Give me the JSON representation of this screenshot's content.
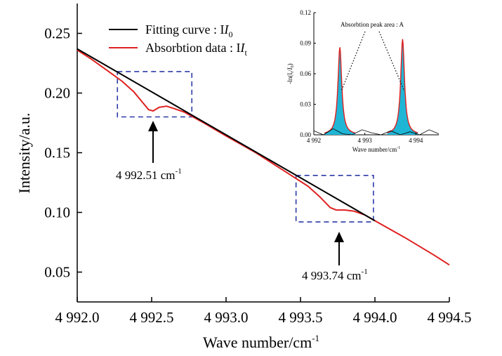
{
  "chart_data": [
    {
      "type": "line",
      "xlabel": "Wave number/cm",
      "xlabel_sup": "-1",
      "ylabel": "Intensity/a.u.",
      "xlim": [
        4992.0,
        4994.5
      ],
      "ylim": [
        0.025,
        0.275
      ],
      "xticks": [
        4992.0,
        4992.5,
        4993.0,
        4993.5,
        4994.0,
        4994.5
      ],
      "xtick_labels": [
        "4 992.0",
        "4 992.5",
        "4 993.0",
        "4 993.5",
        "4 994.0",
        "4 994.5"
      ],
      "yticks": [
        0.05,
        0.1,
        0.15,
        0.2,
        0.25
      ],
      "ytick_labels": [
        "0.05",
        "0.10",
        "0.15",
        "0.20",
        "0.25"
      ],
      "series": [
        {
          "name": "Fitting curve : I",
          "name_sub": "0",
          "color": "#000000",
          "x": [
            4992.0,
            4994.0
          ],
          "y": [
            0.237,
            0.093
          ]
        },
        {
          "name": "Absorbtion data : I",
          "name_sub": "t",
          "color": "#e02020",
          "x": [
            4992.0,
            4992.1,
            4992.2,
            4992.3,
            4992.38,
            4992.44,
            4992.48,
            4992.51,
            4992.55,
            4992.6,
            4992.65,
            4992.72,
            4992.85,
            4993.0,
            4993.2,
            4993.4,
            4993.55,
            4993.63,
            4993.7,
            4993.74,
            4993.8,
            4993.86,
            4993.93,
            4994.0,
            4994.2,
            4994.4,
            4994.5
          ],
          "y": [
            0.236,
            0.228,
            0.219,
            0.21,
            0.201,
            0.192,
            0.186,
            0.185,
            0.188,
            0.189,
            0.187,
            0.184,
            0.175,
            0.164,
            0.15,
            0.134,
            0.122,
            0.113,
            0.104,
            0.102,
            0.102,
            0.101,
            0.098,
            0.093,
            0.079,
            0.064,
            0.056
          ]
        }
      ],
      "annotations": [
        {
          "text": "4 992.51 cm",
          "sup": "-1",
          "x": 4992.51
        },
        {
          "text": "4 993.74 cm",
          "sup": "-1",
          "x": 4993.74
        }
      ],
      "highlight_boxes": [
        {
          "x": [
            4992.27,
            4992.77
          ],
          "y": [
            0.18,
            0.218
          ]
        },
        {
          "x": [
            4993.47,
            4993.99
          ],
          "y": [
            0.092,
            0.131
          ]
        }
      ],
      "legend": "top-left"
    },
    {
      "type": "area",
      "xlabel": "Wave number/cm",
      "xlabel_sup": "-1",
      "ylabel": "-ln(I",
      "ylabel_full": "-ln(It/I0)",
      "annotation": "Absorbtion peak area : A",
      "xlim": [
        4992.0,
        4994.45
      ],
      "ylim": [
        0.0,
        0.12
      ],
      "xticks": [
        4992,
        4993,
        4994
      ],
      "xtick_labels": [
        "4 992",
        "4 993",
        "4 994"
      ],
      "yticks": [
        0.0,
        0.03,
        0.06,
        0.09,
        0.12
      ],
      "ytick_labels": [
        "0.00",
        "0.03",
        "0.06",
        "0.09",
        "0.12"
      ],
      "peaks": [
        {
          "center": 4992.51,
          "height": 0.086,
          "width": 0.045
        },
        {
          "center": 4993.74,
          "height": 0.094,
          "width": 0.045
        }
      ],
      "fill_color": "#1fb6d6",
      "fit_color": "#e02020"
    }
  ]
}
